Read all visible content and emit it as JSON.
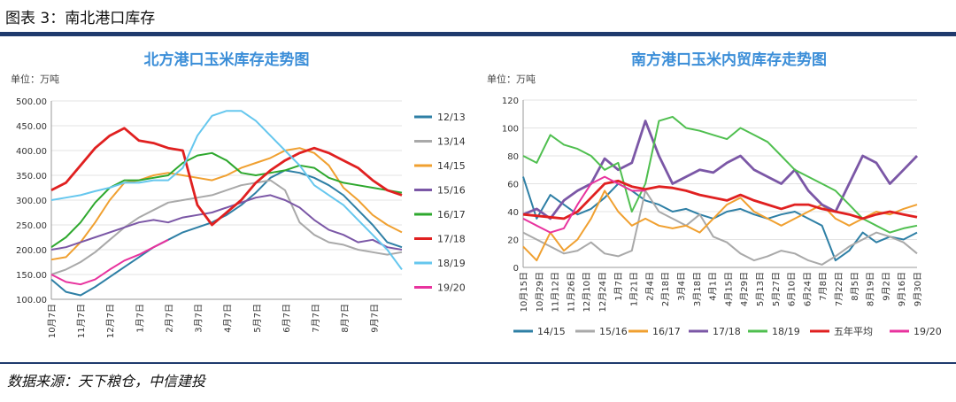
{
  "header": {
    "title": "图表 3：南北港口库存"
  },
  "footer": {
    "source": "数据来源：天下粮仓，中信建投"
  },
  "chart_data": [
    {
      "type": "line",
      "title": "北方港口玉米库存走势图",
      "unit_label": "单位：万吨",
      "ylim": [
        100,
        500
      ],
      "yticks": [
        "100.00",
        "150.00",
        "200.00",
        "250.00",
        "300.00",
        "350.00",
        "400.00",
        "450.00",
        "500.00"
      ],
      "xticks": [
        "10月7日",
        "11月7日",
        "12月7日",
        "1月7日",
        "2月7日",
        "3月7日",
        "4月7日",
        "5月7日",
        "6月7日",
        "7月7日",
        "8月7日",
        "9月7日"
      ],
      "legend_position": "right",
      "series": [
        {
          "name": "12/13",
          "color": "#2e7fa5",
          "values": [
            140,
            115,
            108,
            125,
            145,
            165,
            185,
            205,
            220,
            235,
            245,
            255,
            270,
            290,
            315,
            345,
            360,
            355,
            345,
            330,
            310,
            280,
            250,
            215,
            205
          ]
        },
        {
          "name": "13/14",
          "color": "#a9a9a9",
          "values": [
            150,
            160,
            175,
            195,
            220,
            245,
            265,
            280,
            295,
            300,
            305,
            310,
            320,
            330,
            335,
            340,
            320,
            255,
            230,
            215,
            210,
            200,
            195,
            190,
            195
          ]
        },
        {
          "name": "14/15",
          "color": "#f0a030",
          "values": [
            180,
            185,
            215,
            255,
            300,
            335,
            340,
            350,
            355,
            350,
            345,
            340,
            350,
            365,
            375,
            385,
            400,
            405,
            395,
            370,
            325,
            300,
            270,
            250,
            235
          ]
        },
        {
          "name": "15/16",
          "color": "#7b57a6",
          "values": [
            200,
            205,
            215,
            225,
            235,
            245,
            255,
            260,
            255,
            265,
            270,
            275,
            285,
            295,
            305,
            310,
            300,
            285,
            260,
            240,
            230,
            215,
            220,
            205,
            200
          ]
        },
        {
          "name": "16/17",
          "color": "#2ea82e",
          "values": [
            205,
            225,
            255,
            295,
            325,
            340,
            340,
            345,
            350,
            375,
            390,
            395,
            380,
            355,
            350,
            355,
            360,
            370,
            365,
            345,
            335,
            330,
            325,
            320,
            315
          ]
        },
        {
          "name": "17/18",
          "color": "#e02020",
          "values": [
            320,
            335,
            370,
            405,
            430,
            445,
            420,
            415,
            405,
            400,
            290,
            250,
            275,
            300,
            335,
            360,
            380,
            395,
            405,
            395,
            380,
            365,
            340,
            320,
            310
          ]
        },
        {
          "name": "18/19",
          "color": "#66c7ee",
          "values": [
            300,
            305,
            310,
            318,
            325,
            335,
            335,
            340,
            340,
            365,
            430,
            470,
            480,
            480,
            460,
            430,
            400,
            370,
            330,
            310,
            290,
            260,
            230,
            200,
            160
          ]
        },
        {
          "name": "19/20",
          "color": "#e8339e",
          "values": [
            150,
            135,
            130,
            140,
            160,
            178,
            190,
            205,
            220,
            null,
            null,
            null,
            null,
            null,
            null,
            null,
            null,
            null,
            null,
            null,
            null,
            null,
            null,
            null,
            null
          ]
        }
      ]
    },
    {
      "type": "line",
      "title": "南方港口玉米内贸库存走势图",
      "unit_label": "单位：万吨",
      "ylim": [
        0,
        120
      ],
      "yticks": [
        "0",
        "20",
        "40",
        "60",
        "80",
        "100",
        "120"
      ],
      "xticks": [
        "10月15日",
        "10月29日",
        "11月12日",
        "11月26日",
        "12月10日",
        "12月24日",
        "1月7日",
        "1月21日",
        "2月4日",
        "2月18日",
        "3月4日",
        "3月18日",
        "4月1日",
        "4月15日",
        "4月29日",
        "5月13日",
        "5月27日",
        "6月10日",
        "6月24日",
        "7月8日",
        "7月22日",
        "8月5日",
        "8月19日",
        "9月2日",
        "9月16日",
        "9月30日"
      ],
      "legend_position": "bottom",
      "series": [
        {
          "name": "14/15",
          "color": "#2e7fa5",
          "values": [
            65,
            35,
            52,
            45,
            38,
            42,
            50,
            60,
            55,
            48,
            45,
            40,
            42,
            38,
            35,
            40,
            42,
            38,
            35,
            38,
            40,
            35,
            30,
            5,
            12,
            25,
            18,
            22,
            20,
            25
          ]
        },
        {
          "name": "15/16",
          "color": "#a9a9a9",
          "values": [
            25,
            20,
            15,
            10,
            12,
            18,
            10,
            8,
            12,
            55,
            40,
            35,
            30,
            38,
            22,
            18,
            10,
            5,
            8,
            12,
            10,
            5,
            2,
            8,
            15,
            20,
            25,
            22,
            18,
            10
          ]
        },
        {
          "name": "16/17",
          "color": "#f0a030",
          "values": [
            15,
            5,
            25,
            12,
            20,
            35,
            55,
            40,
            30,
            35,
            30,
            28,
            30,
            25,
            35,
            45,
            50,
            40,
            35,
            30,
            35,
            40,
            45,
            35,
            30,
            35,
            40,
            38,
            42,
            45
          ]
        },
        {
          "name": "17/18",
          "color": "#7b57a6",
          "values": [
            38,
            42,
            35,
            48,
            55,
            60,
            78,
            70,
            75,
            105,
            80,
            60,
            65,
            70,
            68,
            75,
            80,
            70,
            65,
            60,
            70,
            55,
            45,
            40,
            60,
            80,
            75,
            60,
            70,
            80
          ]
        },
        {
          "name": "18/19",
          "color": "#4fbf4f",
          "values": [
            80,
            75,
            95,
            88,
            85,
            80,
            70,
            75,
            40,
            60,
            105,
            108,
            100,
            98,
            95,
            92,
            100,
            95,
            90,
            80,
            70,
            65,
            60,
            55,
            45,
            35,
            30,
            25,
            28,
            30
          ]
        },
        {
          "name": "五年平均",
          "color": "#e02020",
          "values": [
            38,
            37,
            36,
            35,
            40,
            50,
            60,
            62,
            58,
            56,
            58,
            57,
            55,
            52,
            50,
            48,
            52,
            48,
            45,
            42,
            45,
            45,
            42,
            40,
            38,
            35,
            38,
            40,
            38,
            36
          ]
        },
        {
          "name": "19/20",
          "color": "#e8339e",
          "values": [
            35,
            30,
            25,
            28,
            45,
            60,
            65,
            60,
            55,
            55,
            null,
            null,
            null,
            null,
            null,
            null,
            null,
            null,
            null,
            null,
            null,
            null,
            null,
            null,
            null,
            null,
            null,
            null,
            null,
            null
          ]
        }
      ]
    }
  ]
}
